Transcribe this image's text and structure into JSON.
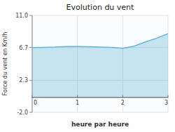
{
  "chart_data": {
    "type": "area",
    "title": "Evolution du vent",
    "xlabel": "heure par heure",
    "ylabel": "Force du vent en Km/h",
    "x": [
      0,
      0.25,
      0.5,
      0.75,
      1.0,
      1.25,
      1.5,
      1.75,
      2.0,
      2.25,
      2.5,
      2.75,
      3.0
    ],
    "values": [
      6.7,
      6.72,
      6.75,
      6.82,
      6.84,
      6.8,
      6.76,
      6.72,
      6.6,
      6.88,
      7.45,
      7.95,
      8.55
    ],
    "color": "#62b8d8",
    "xlim": [
      0,
      3
    ],
    "ylim": [
      -2.0,
      11.0
    ],
    "xticks": [
      0,
      1,
      2,
      3
    ],
    "yticks": [
      {
        "value": -2.0,
        "label": "-2.0"
      },
      2.3,
      6.7,
      {
        "value": 11.0,
        "label": "11.0"
      }
    ],
    "grid": true
  }
}
